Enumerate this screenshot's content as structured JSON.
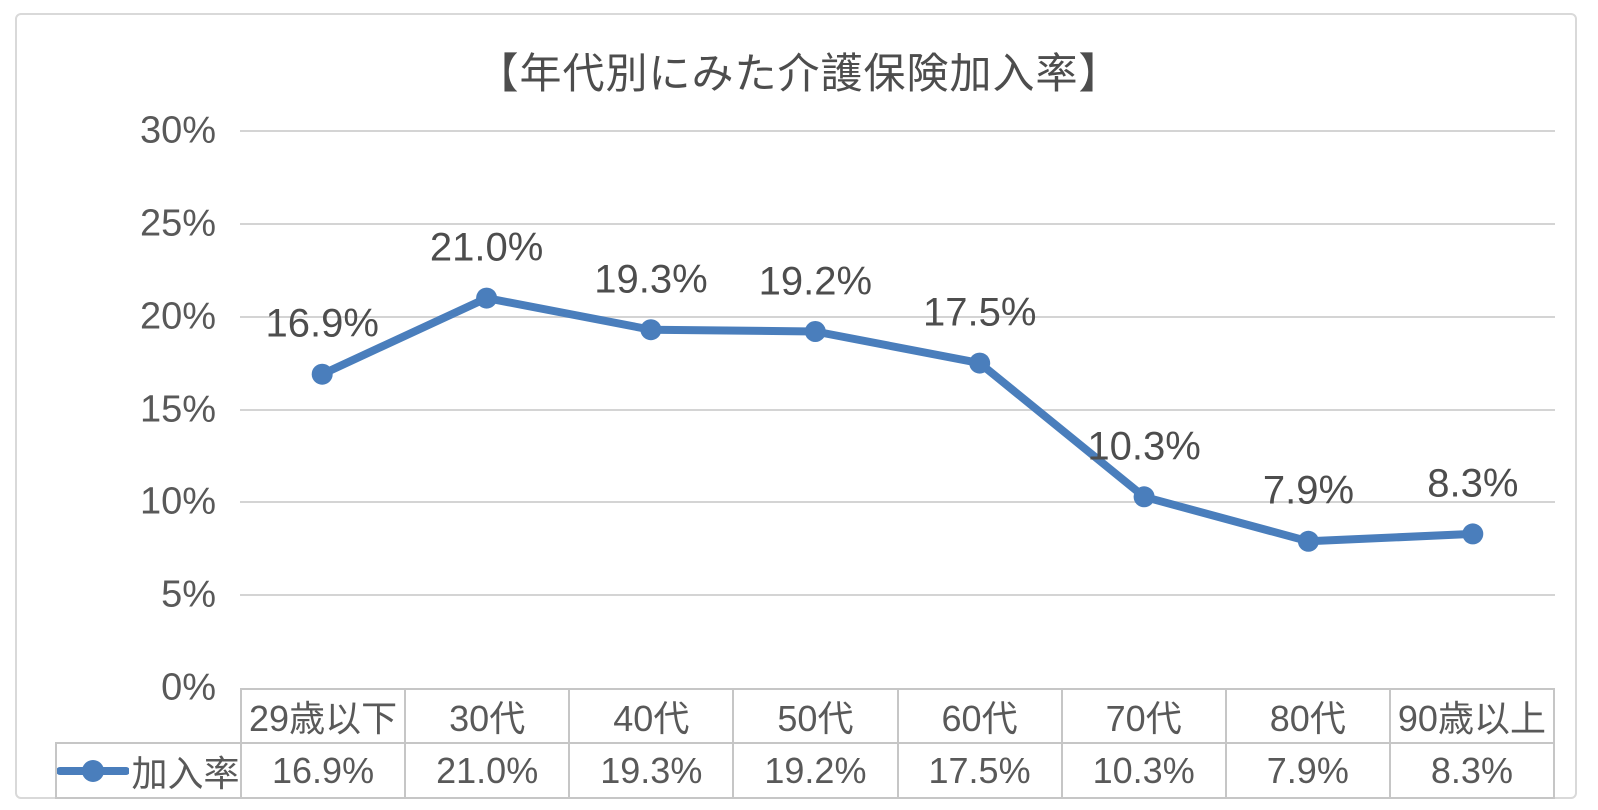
{
  "chart_data": {
    "type": "line",
    "title": "【年代別にみた介護保険加入率】",
    "categories": [
      "29歳以下",
      "30代",
      "40代",
      "50代",
      "60代",
      "70代",
      "80代",
      "90歳以上"
    ],
    "series": [
      {
        "name": "加入率",
        "values": [
          16.9,
          21.0,
          19.3,
          19.2,
          17.5,
          10.3,
          7.9,
          8.3
        ]
      }
    ],
    "value_labels": [
      "16.9%",
      "21.0%",
      "19.3%",
      "19.2%",
      "17.5%",
      "10.3%",
      "7.9%",
      "8.3%"
    ],
    "xlabel": "",
    "ylabel": "",
    "y_ticks": [
      "0%",
      "5%",
      "10%",
      "15%",
      "20%",
      "25%",
      "30%"
    ],
    "y_step": 5,
    "ylim": [
      0,
      30
    ],
    "grid": true,
    "show_data_labels": true,
    "legend": {
      "position": "data-table-left",
      "entries": [
        "加入率"
      ]
    },
    "data_table_shown": true,
    "colors": {
      "line": "#4A7EBC",
      "marker": "#4A7EBC",
      "text": "#595959",
      "title_text": "#4D4D4D",
      "gridline": "#D4D4D4",
      "table_border": "#C6C6C6",
      "frame_border": "#D9D9D9",
      "background": "#FFFFFF"
    }
  }
}
